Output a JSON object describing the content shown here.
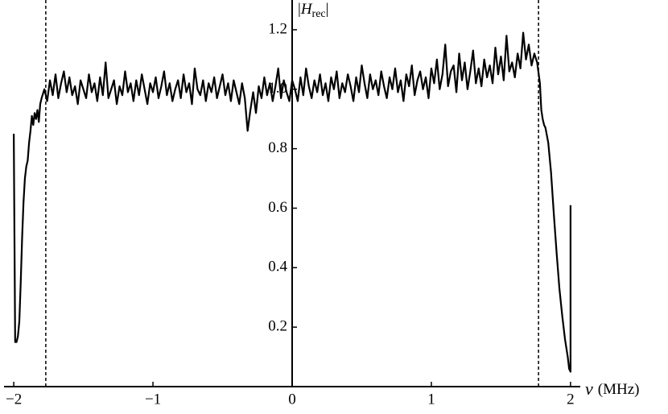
{
  "chart_data": {
    "type": "line",
    "y_label": [
      "|",
      "H",
      "rec",
      "|"
    ],
    "x_label": [
      "ν",
      "(MHz)"
    ],
    "color": "#000000",
    "xlim": [
      -2.07,
      2.07
    ],
    "ylim": [
      0,
      1.3
    ],
    "xticks": [
      {
        "value": -2,
        "label": "−2"
      },
      {
        "value": -1,
        "label": "−1"
      },
      0,
      1,
      2
    ],
    "yticks": [
      0.2,
      0.4,
      0.6,
      0.8,
      {
        "value": 1,
        "label": "1.0"
      },
      1.2
    ],
    "reference_lines": [
      -1.77,
      0,
      1.77
    ],
    "x": [
      -2.0,
      -1.99,
      -1.98,
      -1.97,
      -1.96,
      -1.95,
      -1.94,
      -1.93,
      -1.92,
      -1.91,
      -1.9,
      -1.89,
      -1.88,
      -1.87,
      -1.86,
      -1.85,
      -1.84,
      -1.83,
      -1.82,
      -1.81,
      -1.8,
      -1.78,
      -1.76,
      -1.74,
      -1.72,
      -1.7,
      -1.68,
      -1.66,
      -1.64,
      -1.62,
      -1.6,
      -1.58,
      -1.56,
      -1.54,
      -1.52,
      -1.5,
      -1.48,
      -1.46,
      -1.44,
      -1.42,
      -1.4,
      -1.38,
      -1.36,
      -1.34,
      -1.32,
      -1.3,
      -1.28,
      -1.26,
      -1.24,
      -1.22,
      -1.2,
      -1.18,
      -1.16,
      -1.14,
      -1.12,
      -1.1,
      -1.08,
      -1.06,
      -1.04,
      -1.02,
      -1.0,
      -0.98,
      -0.96,
      -0.94,
      -0.92,
      -0.9,
      -0.88,
      -0.86,
      -0.84,
      -0.82,
      -0.8,
      -0.78,
      -0.76,
      -0.74,
      -0.72,
      -0.7,
      -0.68,
      -0.66,
      -0.64,
      -0.62,
      -0.6,
      -0.58,
      -0.56,
      -0.54,
      -0.52,
      -0.5,
      -0.48,
      -0.46,
      -0.44,
      -0.42,
      -0.4,
      -0.38,
      -0.36,
      -0.34,
      -0.32,
      -0.3,
      -0.28,
      -0.26,
      -0.24,
      -0.22,
      -0.2,
      -0.18,
      -0.16,
      -0.14,
      -0.12,
      -0.1,
      -0.08,
      -0.06,
      -0.04,
      -0.02,
      0,
      0.02,
      0.04,
      0.06,
      0.08,
      0.1,
      0.12,
      0.14,
      0.16,
      0.18,
      0.2,
      0.22,
      0.24,
      0.26,
      0.28,
      0.3,
      0.32,
      0.34,
      0.36,
      0.38,
      0.4,
      0.42,
      0.44,
      0.46,
      0.48,
      0.5,
      0.52,
      0.54,
      0.56,
      0.58,
      0.6,
      0.62,
      0.64,
      0.66,
      0.68,
      0.7,
      0.72,
      0.74,
      0.76,
      0.78,
      0.8,
      0.82,
      0.84,
      0.86,
      0.88,
      0.9,
      0.92,
      0.94,
      0.96,
      0.98,
      1.0,
      1.02,
      1.04,
      1.06,
      1.08,
      1.1,
      1.12,
      1.14,
      1.16,
      1.18,
      1.2,
      1.22,
      1.24,
      1.26,
      1.28,
      1.3,
      1.32,
      1.34,
      1.36,
      1.38,
      1.4,
      1.42,
      1.44,
      1.46,
      1.48,
      1.5,
      1.52,
      1.54,
      1.56,
      1.58,
      1.6,
      1.62,
      1.64,
      1.66,
      1.68,
      1.7,
      1.72,
      1.74,
      1.76,
      1.78,
      1.79,
      1.8,
      1.81,
      1.82,
      1.84,
      1.86,
      1.88,
      1.9,
      1.92,
      1.94,
      1.96,
      1.98,
      1.99,
      2.0,
      2.0
    ],
    "values": [
      0.85,
      0.15,
      0.15,
      0.17,
      0.22,
      0.35,
      0.5,
      0.62,
      0.7,
      0.74,
      0.76,
      0.82,
      0.86,
      0.91,
      0.88,
      0.92,
      0.9,
      0.93,
      0.89,
      0.95,
      0.97,
      1.0,
      0.96,
      1.03,
      0.98,
      1.05,
      0.97,
      1.02,
      1.06,
      0.99,
      1.04,
      0.98,
      1.01,
      0.95,
      1.03,
      1.0,
      0.97,
      1.05,
      0.99,
      1.02,
      0.96,
      1.04,
      0.98,
      1.09,
      0.97,
      1.0,
      1.03,
      0.95,
      1.01,
      0.98,
      1.06,
      0.99,
      1.02,
      0.96,
      1.03,
      0.98,
      1.05,
      1.0,
      0.95,
      1.02,
      0.99,
      1.04,
      0.97,
      1.01,
      1.06,
      0.98,
      1.02,
      0.96,
      1.0,
      1.03,
      0.97,
      1.05,
      0.99,
      1.02,
      0.95,
      1.07,
      1.0,
      0.98,
      1.03,
      0.96,
      1.02,
      0.99,
      1.04,
      0.97,
      1.01,
      1.05,
      0.98,
      1.02,
      0.96,
      1.03,
      0.99,
      0.95,
      1.02,
      0.97,
      0.86,
      0.93,
      0.99,
      0.92,
      1.01,
      0.97,
      1.04,
      0.98,
      1.02,
      0.96,
      1.01,
      1.07,
      0.97,
      1.03,
      0.99,
      0.96,
      1.03,
      1.0,
      0.96,
      1.04,
      0.98,
      1.07,
      1.01,
      0.97,
      1.03,
      0.99,
      1.05,
      0.98,
      1.02,
      0.96,
      1.04,
      1.0,
      1.06,
      0.97,
      1.02,
      0.99,
      1.05,
      1.01,
      0.96,
      1.04,
      0.99,
      1.08,
      1.02,
      0.97,
      1.05,
      1.0,
      1.03,
      0.98,
      1.06,
      1.01,
      0.97,
      1.04,
      1.0,
      1.07,
      0.99,
      1.03,
      0.96,
      1.05,
      1.01,
      1.08,
      0.98,
      1.03,
      1.06,
      1.0,
      1.04,
      0.97,
      1.07,
      1.02,
      1.1,
      1.0,
      1.05,
      1.15,
      1.01,
      1.06,
      1.08,
      0.99,
      1.12,
      1.03,
      1.09,
      1.0,
      1.06,
      1.13,
      1.02,
      1.07,
      1.01,
      1.1,
      1.04,
      1.08,
      1.02,
      1.14,
      1.05,
      1.11,
      1.03,
      1.18,
      1.06,
      1.09,
      1.04,
      1.12,
      1.07,
      1.19,
      1.1,
      1.15,
      1.08,
      1.12,
      1.09,
      1.02,
      0.93,
      0.9,
      0.88,
      0.87,
      0.82,
      0.72,
      0.58,
      0.45,
      0.33,
      0.24,
      0.16,
      0.1,
      0.06,
      0.05,
      0.61
    ]
  }
}
